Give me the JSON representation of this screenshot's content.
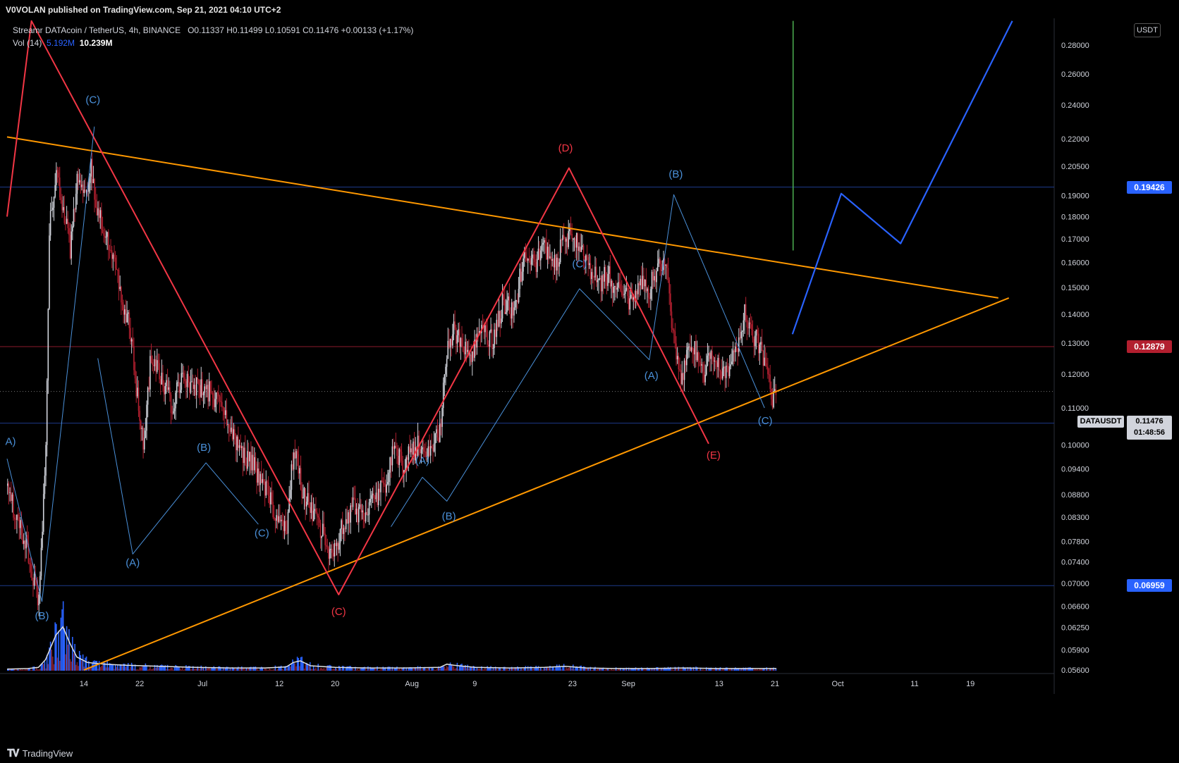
{
  "header": {
    "published": "V0VOLAN published on TradingView.com, Sep 21, 2021 04:10 UTC+2"
  },
  "legend": {
    "symbol": "Streamr DATAcoin / TetherUS, 4h, BINANCE",
    "ohlc": "O0.11337  H0.11499  L0.10591  C0.11476  +0.00133 (+1.17%)",
    "vol_label": "Vol (14)",
    "vol_ma": "5.192M",
    "vol_value": "10.239M"
  },
  "footer": {
    "brand": "TradingView",
    "icon": "tradingview-logo-icon"
  },
  "currency": "USDT",
  "colors": {
    "background": "#000000",
    "up": "#d1d4dc",
    "down": "#b21f2f",
    "red_wave": "#f23645",
    "blue_wave": "#4a90d9",
    "projection": "#2962ff",
    "trendline": "#ff9800",
    "green_line": "#4caf50",
    "hline_blue": "#1e3a8a",
    "hline_red": "#8b1a2b"
  },
  "price_tags": [
    {
      "label": "0.19426",
      "value": 0.19426,
      "color": "#2962ff"
    },
    {
      "label": "0.12879",
      "value": 0.12879,
      "color": "#b21f2f"
    },
    {
      "label": "0.10576",
      "value": 0.10576,
      "color": "#2962ff"
    },
    {
      "label": "0.06959",
      "value": 0.06959,
      "color": "#2962ff"
    }
  ],
  "current": {
    "symbol": "DATAUSDT",
    "price": "0.11476",
    "countdown": "01:48:56",
    "value": 0.11476
  },
  "chart_data": {
    "type": "candlestick",
    "title": "Streamr DATAcoin / TetherUS, 4h, BINANCE",
    "xlabel": "",
    "ylabel": "",
    "log_scale": true,
    "ylim": [
      0.0555,
      0.3
    ],
    "x_ticks": [
      "14",
      "22",
      "Jul",
      "12",
      "20",
      "Aug",
      "9",
      "23",
      "Sep",
      "13",
      "21",
      "Oct",
      "11",
      "19"
    ],
    "x_tick_days": [
      14,
      22,
      31,
      42,
      50,
      61,
      70,
      84,
      92,
      105,
      113,
      122,
      133,
      141
    ],
    "xlim_days": [
      3,
      153
    ],
    "y_ticks": [
      "0.28000",
      "0.26000",
      "0.24000",
      "0.22000",
      "0.20500",
      "0.19000",
      "0.18000",
      "0.17000",
      "0.16000",
      "0.15000",
      "0.14000",
      "0.13000",
      "0.12000",
      "0.11000",
      "0.10000",
      "0.09400",
      "0.08800",
      "0.08300",
      "0.07800",
      "0.07400",
      "0.07000",
      "0.06600",
      "0.06250",
      "0.05900",
      "0.05600"
    ],
    "price_path": [
      [
        3.0,
        0.09
      ],
      [
        4.5,
        0.082
      ],
      [
        6.0,
        0.076
      ],
      [
        7.5,
        0.066
      ],
      [
        8.5,
        0.1
      ],
      [
        9.0,
        0.175
      ],
      [
        10.0,
        0.2
      ],
      [
        11.0,
        0.185
      ],
      [
        12.0,
        0.165
      ],
      [
        13.0,
        0.2
      ],
      [
        14.0,
        0.19
      ],
      [
        15.0,
        0.205
      ],
      [
        16.0,
        0.18
      ],
      [
        17.5,
        0.17
      ],
      [
        19.0,
        0.15
      ],
      [
        20.5,
        0.135
      ],
      [
        21.5,
        0.115
      ],
      [
        22.5,
        0.1
      ],
      [
        23.5,
        0.125
      ],
      [
        25.0,
        0.12
      ],
      [
        26.5,
        0.11
      ],
      [
        28.0,
        0.12
      ],
      [
        29.5,
        0.115
      ],
      [
        31.0,
        0.117
      ],
      [
        32.5,
        0.113
      ],
      [
        34.0,
        0.108
      ],
      [
        35.5,
        0.102
      ],
      [
        37.0,
        0.097
      ],
      [
        38.5,
        0.094
      ],
      [
        40.0,
        0.09
      ],
      [
        41.5,
        0.083
      ],
      [
        43.0,
        0.08
      ],
      [
        44.0,
        0.1
      ],
      [
        45.0,
        0.09
      ],
      [
        46.5,
        0.085
      ],
      [
        48.0,
        0.08
      ],
      [
        49.5,
        0.074
      ],
      [
        51.0,
        0.082
      ],
      [
        52.5,
        0.085
      ],
      [
        54.0,
        0.083
      ],
      [
        55.5,
        0.087
      ],
      [
        57.0,
        0.09
      ],
      [
        58.5,
        0.1
      ],
      [
        59.5,
        0.095
      ],
      [
        60.5,
        0.098
      ],
      [
        62.0,
        0.1
      ],
      [
        63.5,
        0.097
      ],
      [
        65.0,
        0.105
      ],
      [
        66.0,
        0.13
      ],
      [
        67.0,
        0.135
      ],
      [
        68.0,
        0.13
      ],
      [
        69.5,
        0.125
      ],
      [
        71.0,
        0.135
      ],
      [
        72.5,
        0.13
      ],
      [
        74.0,
        0.145
      ],
      [
        75.5,
        0.14
      ],
      [
        77.0,
        0.165
      ],
      [
        78.5,
        0.16
      ],
      [
        80.0,
        0.165
      ],
      [
        81.5,
        0.16
      ],
      [
        83.0,
        0.172
      ],
      [
        84.5,
        0.168
      ],
      [
        86.0,
        0.16
      ],
      [
        87.5,
        0.152
      ],
      [
        89.0,
        0.155
      ],
      [
        90.5,
        0.148
      ],
      [
        92.0,
        0.145
      ],
      [
        93.5,
        0.152
      ],
      [
        95.0,
        0.15
      ],
      [
        96.5,
        0.16
      ],
      [
        97.5,
        0.155
      ],
      [
        98.5,
        0.13
      ],
      [
        99.5,
        0.12
      ],
      [
        101.0,
        0.13
      ],
      [
        102.5,
        0.12
      ],
      [
        104.0,
        0.125
      ],
      [
        105.5,
        0.12
      ],
      [
        107.0,
        0.125
      ],
      [
        108.5,
        0.14
      ],
      [
        109.5,
        0.135
      ],
      [
        110.5,
        0.13
      ],
      [
        111.5,
        0.122
      ],
      [
        112.5,
        0.113
      ],
      [
        113.2,
        0.1148
      ]
    ],
    "volume_path": [
      [
        3,
        0.3
      ],
      [
        6,
        0.4
      ],
      [
        7.5,
        0.6
      ],
      [
        8.5,
        2.0
      ],
      [
        9.0,
        3.5
      ],
      [
        10.0,
        6.5
      ],
      [
        11.0,
        8.0
      ],
      [
        12.0,
        5.0
      ],
      [
        13.0,
        2.5
      ],
      [
        14.5,
        1.5
      ],
      [
        17,
        1.2
      ],
      [
        20,
        1.0
      ],
      [
        25,
        0.8
      ],
      [
        30,
        0.6
      ],
      [
        35,
        0.5
      ],
      [
        40,
        0.5
      ],
      [
        43,
        0.7
      ],
      [
        44,
        1.5
      ],
      [
        45,
        1.8
      ],
      [
        46.5,
        0.9
      ],
      [
        50,
        0.6
      ],
      [
        55,
        0.5
      ],
      [
        60,
        0.5
      ],
      [
        65,
        0.6
      ],
      [
        66,
        1.2
      ],
      [
        67,
        1.0
      ],
      [
        70,
        0.6
      ],
      [
        75,
        0.5
      ],
      [
        80,
        0.6
      ],
      [
        83,
        0.8
      ],
      [
        86,
        0.5
      ],
      [
        90,
        0.4
      ],
      [
        95,
        0.4
      ],
      [
        100,
        0.5
      ],
      [
        105,
        0.4
      ],
      [
        110,
        0.4
      ],
      [
        113.2,
        0.4
      ]
    ],
    "trendlines": [
      {
        "name": "upper",
        "color": "#ff9800",
        "points": [
          [
            3,
            0.221
          ],
          [
            145,
            0.146
          ]
        ]
      },
      {
        "name": "lower",
        "color": "#ff9800",
        "points": [
          [
            14,
            0.056
          ],
          [
            146.5,
            0.146
          ]
        ]
      }
    ],
    "red_wave": {
      "color": "#f23645",
      "points": [
        [
          3,
          0.18
        ],
        [
          6.5,
          0.298
        ],
        [
          50.5,
          0.068
        ],
        [
          83.5,
          0.204
        ],
        [
          103.5,
          0.1003
        ]
      ],
      "labels": [
        {
          "text": "(C)",
          "x": 50.5,
          "y": 0.0645
        },
        {
          "text": "(D)",
          "x": 83.0,
          "y": 0.213
        },
        {
          "text": "(E)",
          "x": 104.2,
          "y": 0.0965
        }
      ]
    },
    "blue_wave_1": {
      "color": "#4a90d9",
      "points": [
        [
          3,
          0.0965
        ],
        [
          8.0,
          0.0668
        ],
        [
          15.5,
          0.227
        ]
      ],
      "labels": [
        {
          "text": "A)",
          "x": 3.5,
          "y": 0.1
        },
        {
          "text": "(B)",
          "x": 8.0,
          "y": 0.0638
        },
        {
          "text": "(C)",
          "x": 15.3,
          "y": 0.241
        }
      ]
    },
    "blue_wave_2": {
      "color": "#4a90d9",
      "points": [
        [
          16.0,
          0.125
        ],
        [
          21.0,
          0.0755
        ],
        [
          31.5,
          0.0955
        ],
        [
          39.0,
          0.0815
        ]
      ],
      "labels": [
        {
          "text": "(A)",
          "x": 21.0,
          "y": 0.0732
        },
        {
          "text": "(B)",
          "x": 31.2,
          "y": 0.0985
        },
        {
          "text": "(C)",
          "x": 39.5,
          "y": 0.079
        }
      ]
    },
    "blue_wave_3": {
      "color": "#4a90d9",
      "points": [
        [
          58.0,
          0.081
        ],
        [
          62.5,
          0.092
        ],
        [
          66.0,
          0.0865
        ],
        [
          85.0,
          0.1495
        ],
        [
          95.0,
          0.1245
        ],
        [
          98.5,
          0.1905
        ],
        [
          111.5,
          0.11
        ]
      ],
      "labels": [
        {
          "text": "(A)",
          "x": 62.5,
          "y": 0.0952
        },
        {
          "text": "(B)",
          "x": 66.3,
          "y": 0.0825
        },
        {
          "text": "(C)",
          "x": 85.0,
          "y": 0.158
        },
        {
          "text": "(A)",
          "x": 95.3,
          "y": 0.1185
        },
        {
          "text": "(B)",
          "x": 98.8,
          "y": 0.199
        },
        {
          "text": "(C)",
          "x": 111.6,
          "y": 0.1055
        }
      ]
    },
    "projection": {
      "color": "#2962ff",
      "points": [
        [
          115.5,
          0.133
        ],
        [
          122.5,
          0.191
        ],
        [
          131.0,
          0.168
        ],
        [
          147.0,
          0.298
        ]
      ]
    },
    "vertical_line": {
      "color": "#4caf50",
      "x": 115.6,
      "y_from": 0.298,
      "y_to": 0.165
    },
    "horizontal_lines": [
      {
        "value": 0.19426,
        "color": "#1e3a8a"
      },
      {
        "value": 0.12879,
        "color": "#8b1a2b"
      },
      {
        "value": 0.10576,
        "color": "#1e3a8a"
      },
      {
        "value": 0.06959,
        "color": "#1e3a8a"
      }
    ]
  }
}
